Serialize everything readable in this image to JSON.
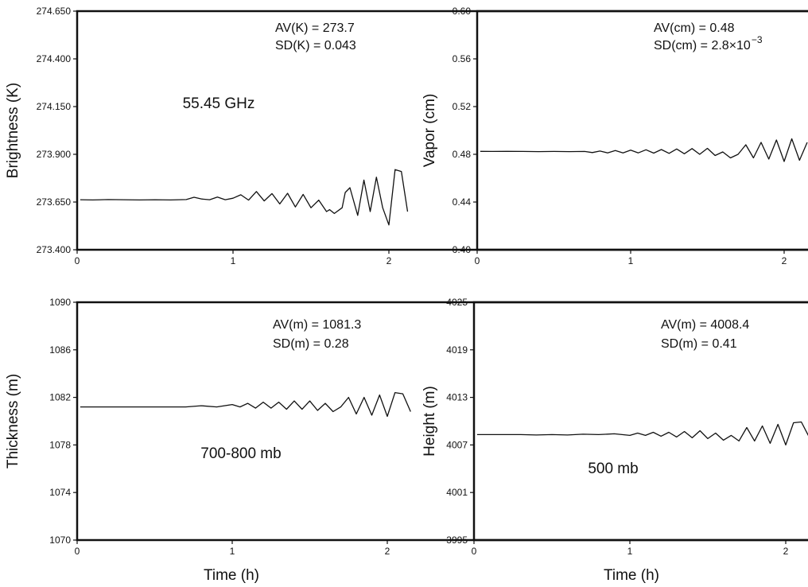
{
  "x_axis_title": "Time (h)",
  "chart_data": [
    {
      "id": "brightness",
      "type": "line",
      "ylabel": "Brightness (K)",
      "xlabel": "",
      "yticks": [
        "273.400",
        "273.650",
        "273.900",
        "274.150",
        "274.400",
        "274.650"
      ],
      "ylim": [
        273.4,
        274.65
      ],
      "xticks": [
        "0",
        "1",
        "2"
      ],
      "xlim": [
        0,
        2.15
      ],
      "annotations": [
        "AV(K) = 273.7",
        "SD(K) = 0.043"
      ],
      "center_label": "55.45 GHz",
      "series": [
        {
          "x": [
            0.02,
            0.1,
            0.2,
            0.3,
            0.4,
            0.5,
            0.6,
            0.7,
            0.75,
            0.8,
            0.85,
            0.9,
            0.95,
            1.0,
            1.05,
            1.1,
            1.15,
            1.2,
            1.25,
            1.3,
            1.35,
            1.4,
            1.45,
            1.5,
            1.55,
            1.6,
            1.62,
            1.65,
            1.7,
            1.72,
            1.75,
            1.8,
            1.84,
            1.88,
            1.92,
            1.96,
            2.0,
            2.04,
            2.08,
            2.12
          ],
          "y": [
            273.662,
            273.661,
            273.663,
            273.662,
            273.661,
            273.662,
            273.661,
            273.663,
            273.675,
            273.666,
            273.662,
            273.676,
            273.662,
            273.67,
            273.688,
            273.66,
            273.705,
            273.656,
            273.694,
            273.64,
            273.696,
            273.624,
            273.69,
            273.62,
            273.66,
            273.6,
            273.61,
            273.59,
            273.62,
            273.7,
            273.725,
            273.58,
            273.765,
            273.6,
            273.78,
            273.62,
            273.53,
            273.82,
            273.81,
            273.6
          ]
        }
      ]
    },
    {
      "id": "vapor",
      "type": "line",
      "ylabel": "Vapor (cm)",
      "xlabel": "",
      "yticks": [
        "0.40",
        "0.44",
        "0.48",
        "0.52",
        "0.56",
        "0.60"
      ],
      "ylim": [
        0.4,
        0.6
      ],
      "xticks": [
        "0",
        "1",
        "2"
      ],
      "xlim": [
        0,
        2.15
      ],
      "annotations": [
        "AV(cm) = 0.48",
        "SD(cm) = 2.8×10"
      ],
      "annotation_superscript": "−3",
      "series": [
        {
          "x": [
            0.02,
            0.1,
            0.2,
            0.3,
            0.4,
            0.5,
            0.6,
            0.7,
            0.75,
            0.8,
            0.85,
            0.9,
            0.95,
            1.0,
            1.05,
            1.1,
            1.15,
            1.2,
            1.25,
            1.3,
            1.35,
            1.4,
            1.45,
            1.5,
            1.55,
            1.6,
            1.65,
            1.7,
            1.75,
            1.8,
            1.85,
            1.9,
            1.95,
            2.0,
            2.05,
            2.1,
            2.15
          ],
          "y": [
            0.4825,
            0.4824,
            0.4825,
            0.4824,
            0.4823,
            0.4824,
            0.4823,
            0.4824,
            0.4815,
            0.4827,
            0.4812,
            0.4832,
            0.4812,
            0.4835,
            0.4812,
            0.4838,
            0.481,
            0.484,
            0.4808,
            0.4845,
            0.4805,
            0.4848,
            0.48,
            0.485,
            0.479,
            0.482,
            0.477,
            0.48,
            0.488,
            0.477,
            0.49,
            0.476,
            0.492,
            0.474,
            0.493,
            0.475,
            0.49
          ]
        }
      ]
    },
    {
      "id": "thickness",
      "type": "line",
      "ylabel": "Thickness (m)",
      "xlabel": "",
      "yticks": [
        "1070",
        "1074",
        "1078",
        "1082",
        "1086",
        "1090"
      ],
      "ylim": [
        1070,
        1090
      ],
      "xticks": [
        "0",
        "1",
        "2"
      ],
      "xlim": [
        0,
        2.15
      ],
      "annotations": [
        "AV(m) = 1081.3",
        "SD(m) = 0.28"
      ],
      "center_label": "700-800 mb",
      "series": [
        {
          "x": [
            0.02,
            0.1,
            0.2,
            0.3,
            0.4,
            0.5,
            0.6,
            0.7,
            0.8,
            0.9,
            1.0,
            1.05,
            1.1,
            1.15,
            1.2,
            1.25,
            1.3,
            1.35,
            1.4,
            1.45,
            1.5,
            1.55,
            1.6,
            1.65,
            1.7,
            1.75,
            1.8,
            1.85,
            1.9,
            1.95,
            2.0,
            2.05,
            2.1,
            2.15
          ],
          "y": [
            1081.2,
            1081.2,
            1081.2,
            1081.2,
            1081.2,
            1081.2,
            1081.2,
            1081.2,
            1081.3,
            1081.2,
            1081.4,
            1081.2,
            1081.5,
            1081.1,
            1081.6,
            1081.1,
            1081.6,
            1081.0,
            1081.7,
            1081.0,
            1081.7,
            1080.9,
            1081.5,
            1080.8,
            1081.2,
            1082.0,
            1080.6,
            1082.0,
            1080.5,
            1082.2,
            1080.4,
            1082.4,
            1082.3,
            1080.8
          ]
        }
      ]
    },
    {
      "id": "height",
      "type": "line",
      "ylabel": "Height (m)",
      "xlabel": "",
      "yticks": [
        "3995",
        "4001",
        "4007",
        "4013",
        "4019",
        "4025"
      ],
      "ylim": [
        3995,
        4025
      ],
      "xticks": [
        "0",
        "1",
        "2"
      ],
      "xlim": [
        0,
        2.15
      ],
      "annotations": [
        "AV(m) = 4008.4",
        "SD(m) = 0.41"
      ],
      "center_label": "500 mb",
      "series": [
        {
          "x": [
            0.02,
            0.1,
            0.2,
            0.3,
            0.4,
            0.5,
            0.6,
            0.7,
            0.8,
            0.9,
            1.0,
            1.05,
            1.1,
            1.15,
            1.2,
            1.25,
            1.3,
            1.35,
            1.4,
            1.45,
            1.5,
            1.55,
            1.6,
            1.65,
            1.7,
            1.75,
            1.8,
            1.85,
            1.9,
            1.95,
            2.0,
            2.05,
            2.1,
            2.15
          ],
          "y": [
            4008.3,
            4008.3,
            4008.3,
            4008.3,
            4008.25,
            4008.3,
            4008.25,
            4008.35,
            4008.3,
            4008.4,
            4008.2,
            4008.5,
            4008.2,
            4008.6,
            4008.1,
            4008.6,
            4008.0,
            4008.7,
            4007.9,
            4008.8,
            4007.8,
            4008.5,
            4007.6,
            4008.2,
            4007.5,
            4009.2,
            4007.5,
            4009.4,
            4007.2,
            4009.6,
            4007.0,
            4009.8,
            4009.9,
            4008.0
          ]
        }
      ]
    }
  ]
}
